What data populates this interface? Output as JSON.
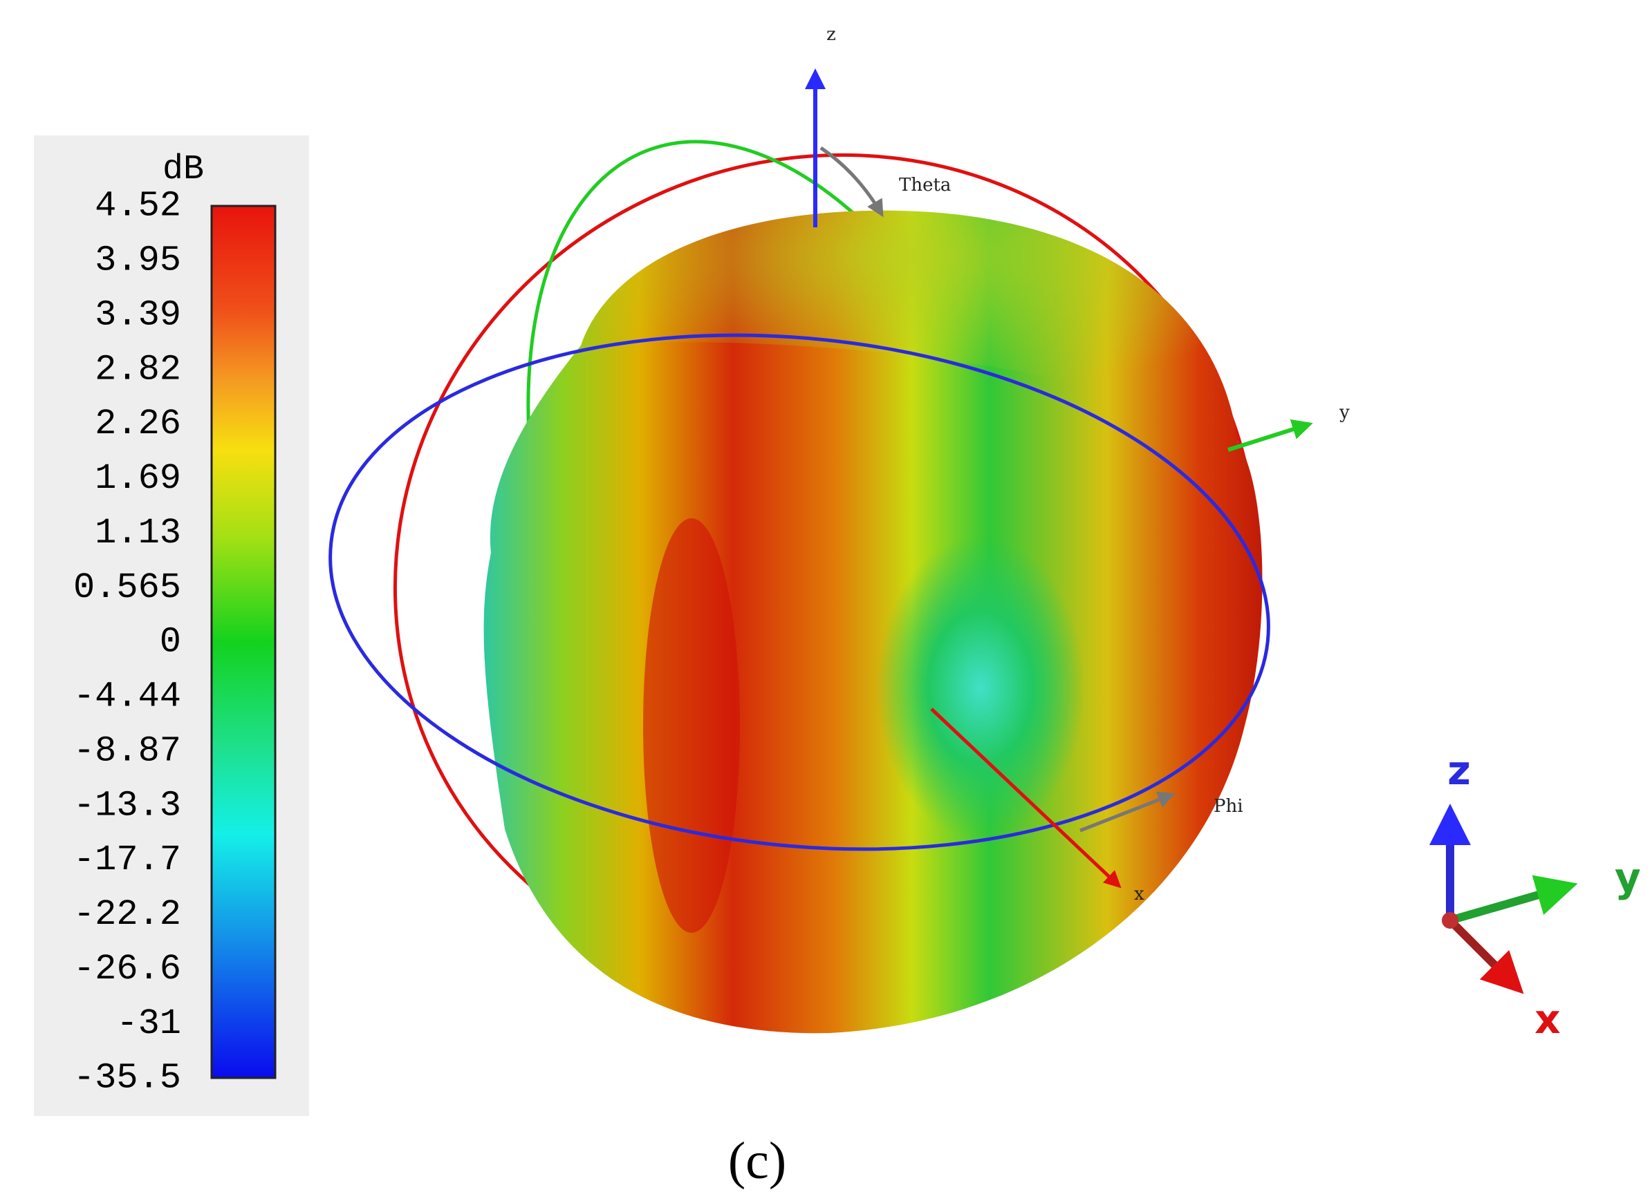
{
  "colorbar": {
    "unit": "dB",
    "labels": [
      "4.52",
      "3.95",
      "3.39",
      "2.82",
      "2.26",
      "1.69",
      "1.13",
      "0.565",
      "0",
      "-4.44",
      "-8.87",
      "-13.3",
      "-17.7",
      "-22.2",
      "-26.6",
      "-31",
      "-35.5"
    ]
  },
  "axes": {
    "z": "z",
    "y": "y",
    "x": "x",
    "theta": "Theta",
    "phi": "Phi"
  },
  "triad": {
    "z": "z",
    "y": "y",
    "x": "x"
  },
  "caption": "(c)"
}
